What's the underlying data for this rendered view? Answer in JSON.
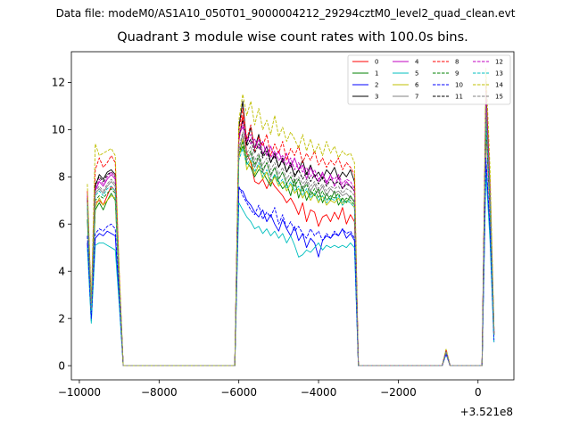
{
  "suptitle": "Data file: modeM0/AS1A10_050T01_9000004212_29294cztM0_level2_quad_clean.evt",
  "chart_data": {
    "type": "line",
    "title": "Quadrant 3 module wise count rates with 100.0s bins.",
    "xlabel": "",
    "ylabel": "",
    "x_offset_label": "+3.521e8",
    "xlim": [
      -10200,
      900
    ],
    "ylim": [
      -0.6,
      13.3
    ],
    "xticks": [
      -10000,
      -8000,
      -6000,
      -4000,
      -2000,
      0
    ],
    "xtick_labels": [
      "−10000",
      "−8000",
      "−6000",
      "−4000",
      "−2000",
      "0"
    ],
    "yticks": [
      0,
      2,
      4,
      6,
      8,
      10,
      12
    ],
    "ytick_labels": [
      "0",
      "2",
      "4",
      "6",
      "8",
      "10",
      "12"
    ],
    "grid": false,
    "legend_position": "top-right",
    "x": [
      -9800,
      -9700,
      -9600,
      -9500,
      -9400,
      -9300,
      -9200,
      -9100,
      -9000,
      -8900,
      -8800,
      -8000,
      -7000,
      -6100,
      -6000,
      -5900,
      -5800,
      -5700,
      -5600,
      -5500,
      -5400,
      -5300,
      -5200,
      -5100,
      -5000,
      -4900,
      -4800,
      -4700,
      -4600,
      -4500,
      -4400,
      -4300,
      -4200,
      -4100,
      -4000,
      -3900,
      -3800,
      -3700,
      -3600,
      -3500,
      -3400,
      -3300,
      -3200,
      -3100,
      -3000,
      -2000,
      -1000,
      -900,
      -800,
      -700,
      100,
      200,
      300,
      400
    ],
    "series": [
      {
        "name": "0",
        "color": "#ff0000",
        "dash": "solid",
        "values": [
          6.8,
          2.4,
          6.9,
          7.0,
          6.8,
          7.2,
          7.6,
          7.4,
          3.4,
          0.0,
          0.0,
          0.0,
          0.0,
          0.0,
          9.5,
          10.6,
          9.0,
          8.6,
          7.8,
          7.7,
          7.9,
          7.5,
          7.9,
          7.6,
          7.4,
          7.2,
          6.9,
          7.1,
          6.8,
          6.4,
          6.9,
          6.1,
          6.6,
          6.5,
          5.9,
          6.3,
          6.4,
          6.1,
          6.5,
          6.2,
          6.7,
          6.0,
          6.4,
          6.1,
          0.0,
          0.0,
          0.0,
          0.0,
          0.6,
          0.0,
          0.0,
          10.0,
          6.5,
          1.3
        ]
      },
      {
        "name": "1",
        "color": "#008000",
        "dash": "solid",
        "values": [
          6.2,
          2.2,
          6.6,
          6.9,
          6.6,
          7.0,
          7.3,
          7.0,
          3.3,
          0.0,
          0.0,
          0.0,
          0.0,
          0.0,
          8.9,
          9.3,
          8.6,
          8.4,
          8.0,
          8.3,
          8.2,
          7.9,
          7.6,
          8.1,
          7.8,
          7.5,
          7.7,
          7.2,
          7.9,
          7.1,
          7.6,
          7.0,
          7.4,
          7.2,
          7.5,
          6.9,
          7.3,
          7.0,
          7.4,
          6.8,
          7.1,
          6.9,
          7.2,
          6.9,
          0.0,
          0.0,
          0.0,
          0.0,
          0.6,
          0.0,
          0.0,
          10.2,
          6.8,
          1.3
        ]
      },
      {
        "name": "2",
        "color": "#0000ff",
        "dash": "solid",
        "values": [
          5.2,
          1.9,
          5.4,
          5.6,
          5.5,
          5.7,
          5.6,
          5.5,
          2.8,
          0.0,
          0.0,
          0.0,
          0.0,
          0.0,
          7.5,
          7.4,
          7.0,
          6.8,
          6.5,
          6.3,
          6.6,
          6.1,
          6.4,
          6.0,
          5.7,
          6.2,
          5.8,
          5.5,
          5.9,
          5.3,
          5.6,
          5.0,
          5.4,
          5.2,
          4.6,
          5.3,
          5.5,
          5.4,
          5.6,
          5.5,
          5.8,
          5.4,
          5.6,
          5.3,
          0.0,
          0.0,
          0.0,
          0.0,
          0.5,
          0.0,
          0.0,
          8.6,
          5.6,
          1.0
        ]
      },
      {
        "name": "3",
        "color": "#000000",
        "dash": "solid",
        "values": [
          7.0,
          2.4,
          7.6,
          8.1,
          7.9,
          8.2,
          8.3,
          8.1,
          3.8,
          0.0,
          0.0,
          0.0,
          0.0,
          0.0,
          10.1,
          11.2,
          9.4,
          10.1,
          9.2,
          9.8,
          8.9,
          9.3,
          8.6,
          9.0,
          8.4,
          8.8,
          8.2,
          8.6,
          8.0,
          8.3,
          8.7,
          8.1,
          8.5,
          8.0,
          8.2,
          7.9,
          8.3,
          8.1,
          8.4,
          7.9,
          8.2,
          8.0,
          8.3,
          7.8,
          0.0,
          0.0,
          0.0,
          0.0,
          0.6,
          0.0,
          0.0,
          11.8,
          7.6,
          1.5
        ]
      },
      {
        "name": "4",
        "color": "#c000c0",
        "dash": "solid",
        "values": [
          7.2,
          2.5,
          7.4,
          7.8,
          7.6,
          7.9,
          8.1,
          7.9,
          3.7,
          0.0,
          0.0,
          0.0,
          0.0,
          0.0,
          9.8,
          10.1,
          9.7,
          9.4,
          9.6,
          9.2,
          9.5,
          8.9,
          9.3,
          8.8,
          9.1,
          8.6,
          9.0,
          8.4,
          8.8,
          8.3,
          8.5,
          7.9,
          8.4,
          8.0,
          7.8,
          8.2,
          7.7,
          8.1,
          7.6,
          8.0,
          7.5,
          7.8,
          7.6,
          7.4,
          0.0,
          0.0,
          0.0,
          0.0,
          0.6,
          0.0,
          0.0,
          11.4,
          7.4,
          1.4
        ]
      },
      {
        "name": "5",
        "color": "#00bfbf",
        "dash": "solid",
        "values": [
          5.0,
          1.8,
          5.1,
          5.2,
          5.2,
          5.1,
          5.0,
          4.9,
          2.6,
          0.0,
          0.0,
          0.0,
          0.0,
          0.0,
          6.9,
          6.6,
          6.3,
          6.1,
          5.8,
          5.9,
          5.6,
          5.8,
          5.5,
          5.7,
          5.4,
          5.6,
          5.2,
          5.5,
          5.1,
          4.6,
          4.7,
          4.9,
          4.8,
          5.0,
          5.2,
          4.9,
          5.1,
          5.0,
          5.1,
          5.0,
          5.1,
          5.0,
          5.2,
          5.0,
          0.0,
          0.0,
          0.0,
          0.0,
          0.5,
          0.0,
          0.0,
          8.2,
          5.3,
          1.0
        ]
      },
      {
        "name": "6",
        "color": "#bfbf00",
        "dash": "solid",
        "values": [
          6.6,
          2.3,
          6.7,
          7.1,
          6.8,
          7.0,
          7.2,
          7.1,
          3.4,
          0.0,
          0.0,
          0.0,
          0.0,
          0.0,
          8.8,
          9.6,
          8.3,
          8.7,
          8.1,
          8.5,
          7.9,
          8.2,
          7.7,
          8.0,
          7.6,
          7.8,
          7.4,
          7.7,
          7.3,
          7.5,
          7.1,
          7.4,
          7.0,
          7.3,
          6.9,
          7.2,
          6.8,
          7.0,
          6.9,
          7.1,
          6.8,
          7.0,
          6.9,
          6.7,
          0.0,
          0.0,
          0.0,
          0.0,
          0.6,
          0.0,
          0.0,
          10.5,
          6.9,
          1.3
        ]
      },
      {
        "name": "7",
        "color": "#808080",
        "dash": "solid",
        "values": [
          6.7,
          2.3,
          7.3,
          7.5,
          7.3,
          7.6,
          7.8,
          7.6,
          3.6,
          0.0,
          0.0,
          0.0,
          0.0,
          0.0,
          9.1,
          9.8,
          8.7,
          9.0,
          8.4,
          8.8,
          8.2,
          8.6,
          8.0,
          8.4,
          7.9,
          8.2,
          7.7,
          8.0,
          7.6,
          7.9,
          7.5,
          7.8,
          7.4,
          7.7,
          7.3,
          7.6,
          7.2,
          7.5,
          7.3,
          7.4,
          7.2,
          7.3,
          7.1,
          7.0,
          0.0,
          0.0,
          0.0,
          0.0,
          0.6,
          0.0,
          0.0,
          10.9,
          7.1,
          1.3
        ]
      },
      {
        "name": "8",
        "color": "#ff0000",
        "dash": "dashed",
        "values": [
          7.4,
          2.6,
          8.3,
          8.8,
          8.4,
          8.6,
          8.9,
          8.6,
          4.0,
          0.0,
          0.0,
          0.0,
          0.0,
          0.0,
          9.9,
          10.9,
          9.6,
          10.2,
          9.1,
          9.7,
          9.3,
          9.8,
          8.9,
          9.4,
          9.0,
          9.5,
          8.7,
          9.2,
          8.9,
          9.3,
          8.6,
          9.0,
          8.7,
          9.1,
          8.5,
          8.8,
          8.4,
          8.7,
          8.5,
          8.8,
          8.3,
          8.6,
          8.4,
          8.1,
          0.0,
          0.0,
          0.0,
          0.0,
          0.7,
          0.0,
          0.0,
          12.1,
          7.9,
          1.5
        ]
      },
      {
        "name": "9",
        "color": "#008000",
        "dash": "dashed",
        "values": [
          6.9,
          2.4,
          7.0,
          7.2,
          7.1,
          7.3,
          7.5,
          7.3,
          3.5,
          0.0,
          0.0,
          0.0,
          0.0,
          0.0,
          9.0,
          9.5,
          8.8,
          9.1,
          8.5,
          8.9,
          8.3,
          8.6,
          8.1,
          8.4,
          7.9,
          8.2,
          7.7,
          8.0,
          7.6,
          7.9,
          7.4,
          7.7,
          7.2,
          7.5,
          7.1,
          7.4,
          7.0,
          7.2,
          7.1,
          7.3,
          6.9,
          7.1,
          7.0,
          6.8,
          0.0,
          0.0,
          0.0,
          0.0,
          0.6,
          0.0,
          0.0,
          10.6,
          6.9,
          1.3
        ]
      },
      {
        "name": "10",
        "color": "#0000ff",
        "dash": "dashed",
        "values": [
          5.5,
          2.0,
          5.6,
          5.8,
          5.7,
          5.9,
          6.0,
          5.8,
          2.9,
          0.0,
          0.0,
          0.0,
          0.0,
          0.0,
          7.6,
          7.2,
          6.9,
          6.6,
          6.4,
          6.8,
          6.2,
          6.5,
          6.3,
          6.7,
          6.0,
          6.4,
          5.8,
          6.1,
          5.7,
          5.9,
          5.6,
          5.4,
          5.8,
          5.5,
          5.7,
          5.3,
          5.6,
          5.4,
          5.7,
          5.5,
          5.8,
          5.6,
          5.7,
          5.4,
          0.0,
          0.0,
          0.0,
          0.0,
          0.5,
          0.0,
          0.0,
          8.8,
          5.8,
          1.1
        ]
      },
      {
        "name": "11",
        "color": "#000000",
        "dash": "dashed",
        "values": [
          7.1,
          2.5,
          7.7,
          8.0,
          7.8,
          8.1,
          8.2,
          8.0,
          3.7,
          0.0,
          0.0,
          0.0,
          0.0,
          0.0,
          9.7,
          10.4,
          9.3,
          9.6,
          9.0,
          9.4,
          8.8,
          9.1,
          8.6,
          8.9,
          8.4,
          8.7,
          8.2,
          8.5,
          8.1,
          8.3,
          7.9,
          8.2,
          7.8,
          8.1,
          7.7,
          8.0,
          7.6,
          7.9,
          7.7,
          7.8,
          7.5,
          7.7,
          7.6,
          7.4,
          0.0,
          0.0,
          0.0,
          0.0,
          0.6,
          0.0,
          0.0,
          11.5,
          7.4,
          1.4
        ]
      },
      {
        "name": "12",
        "color": "#c000c0",
        "dash": "dashed",
        "values": [
          7.3,
          2.5,
          7.5,
          7.9,
          7.7,
          8.0,
          8.2,
          8.0,
          3.8,
          0.0,
          0.0,
          0.0,
          0.0,
          0.0,
          9.6,
          10.3,
          9.5,
          9.8,
          9.2,
          9.6,
          9.0,
          9.3,
          8.8,
          9.1,
          8.7,
          8.9,
          8.5,
          8.8,
          8.3,
          8.6,
          8.2,
          8.4,
          8.0,
          8.3,
          7.9,
          8.1,
          7.8,
          8.0,
          7.9,
          8.1,
          7.7,
          7.9,
          7.8,
          7.5,
          0.0,
          0.0,
          0.0,
          0.0,
          0.6,
          0.0,
          0.0,
          11.6,
          7.5,
          1.4
        ]
      },
      {
        "name": "13",
        "color": "#00bfbf",
        "dash": "dashed",
        "values": [
          6.8,
          2.3,
          7.2,
          7.4,
          7.2,
          7.5,
          7.6,
          7.4,
          3.5,
          0.0,
          0.0,
          0.0,
          0.0,
          0.0,
          8.7,
          9.2,
          8.5,
          8.8,
          8.2,
          8.6,
          8.0,
          8.3,
          7.8,
          8.1,
          7.7,
          7.9,
          7.5,
          7.8,
          7.4,
          7.6,
          7.2,
          7.5,
          7.1,
          7.3,
          7.0,
          7.2,
          6.9,
          7.1,
          7.0,
          7.2,
          6.8,
          7.0,
          6.9,
          6.7,
          0.0,
          0.0,
          0.0,
          0.0,
          0.6,
          0.0,
          0.0,
          10.3,
          6.8,
          1.3
        ]
      },
      {
        "name": "14",
        "color": "#bfbf00",
        "dash": "dashed",
        "values": [
          7.7,
          2.7,
          9.4,
          8.9,
          9.0,
          9.1,
          9.2,
          8.9,
          4.1,
          0.0,
          0.0,
          0.0,
          0.0,
          0.0,
          10.4,
          11.5,
          10.6,
          11.2,
          10.2,
          10.9,
          10.0,
          10.4,
          9.8,
          10.6,
          9.7,
          10.1,
          9.5,
          9.9,
          9.6,
          9.2,
          9.8,
          9.1,
          9.6,
          9.0,
          9.4,
          8.9,
          9.5,
          9.0,
          9.3,
          8.8,
          9.1,
          8.9,
          9.0,
          8.6,
          0.0,
          0.0,
          0.0,
          0.0,
          0.7,
          0.0,
          0.0,
          12.6,
          8.4,
          1.6
        ]
      },
      {
        "name": "15",
        "color": "#808080",
        "dash": "dashed",
        "values": [
          6.9,
          2.4,
          7.4,
          7.6,
          7.4,
          7.7,
          7.9,
          7.7,
          3.6,
          0.0,
          0.0,
          0.0,
          0.0,
          0.0,
          9.2,
          9.9,
          9.0,
          9.3,
          8.7,
          9.0,
          8.5,
          8.8,
          8.3,
          8.6,
          8.1,
          8.4,
          7.9,
          8.2,
          7.8,
          8.0,
          7.7,
          7.9,
          7.6,
          7.8,
          7.5,
          7.7,
          7.4,
          7.6,
          7.5,
          7.6,
          7.3,
          7.5,
          7.4,
          7.2,
          0.0,
          0.0,
          0.0,
          0.0,
          0.6,
          0.0,
          0.0,
          11.0,
          7.2,
          1.3
        ]
      }
    ]
  }
}
